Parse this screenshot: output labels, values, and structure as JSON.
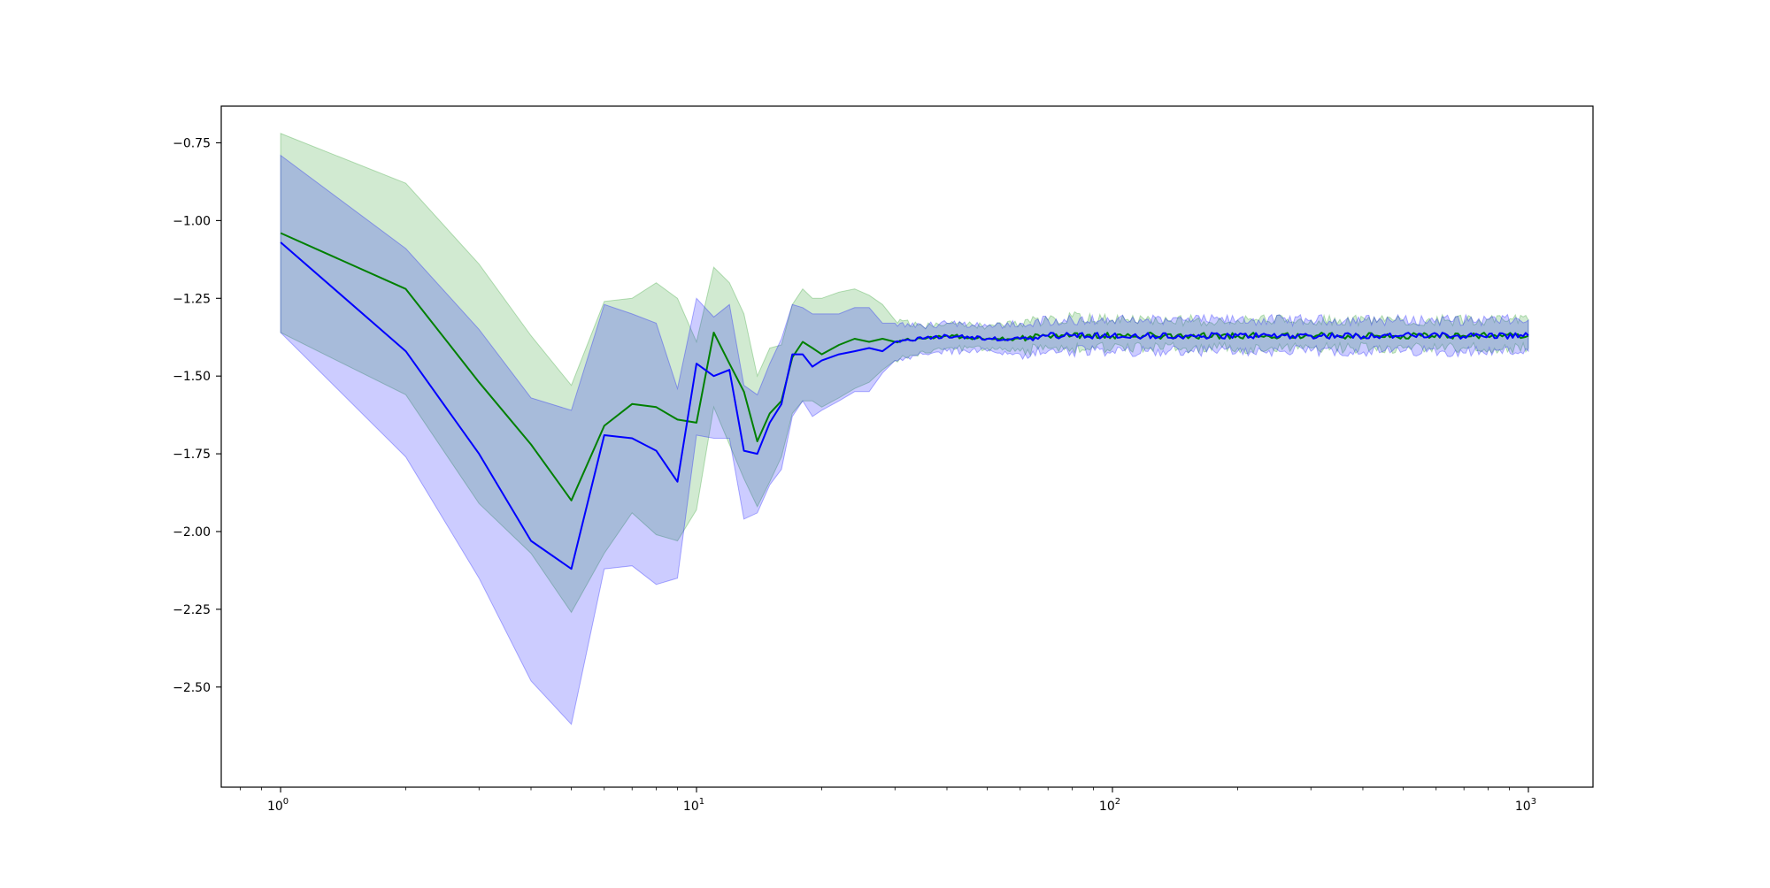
{
  "chart_data": {
    "type": "line",
    "title": "",
    "xlabel": "",
    "ylabel": "",
    "xscale": "log",
    "xlim": [
      0.72,
      1430
    ],
    "ylim": [
      -2.822,
      -0.632
    ],
    "grid": false,
    "legend": "none",
    "x_ticks": [
      {
        "value": 1,
        "base": "10",
        "exp": "0"
      },
      {
        "value": 10,
        "base": "10",
        "exp": "1"
      },
      {
        "value": 100,
        "base": "10",
        "exp": "2"
      },
      {
        "value": 1000,
        "base": "10",
        "exp": "3"
      }
    ],
    "y_ticks": [
      {
        "value": -0.75,
        "label": "−0.75"
      },
      {
        "value": -1.0,
        "label": "−1.00"
      },
      {
        "value": -1.25,
        "label": "−1.25"
      },
      {
        "value": -1.5,
        "label": "−1.50"
      },
      {
        "value": -1.75,
        "label": "−1.75"
      },
      {
        "value": -2.0,
        "label": "−2.00"
      },
      {
        "value": -2.25,
        "label": "−2.25"
      },
      {
        "value": -2.5,
        "label": "−2.50"
      }
    ],
    "series": [
      {
        "color": "#008000",
        "band_color": "#2ca02c",
        "band_opacity": 0.22,
        "x": [
          1,
          2,
          3,
          4,
          5,
          6,
          7,
          8,
          9,
          10,
          11,
          12,
          13,
          14,
          15,
          16,
          17,
          18,
          19,
          20,
          22,
          24,
          26,
          28,
          30,
          35,
          40,
          50,
          60,
          70,
          80,
          100,
          120,
          150,
          200,
          300,
          500,
          1000
        ],
        "y": [
          -1.04,
          -1.22,
          -1.52,
          -1.72,
          -1.9,
          -1.66,
          -1.59,
          -1.6,
          -1.64,
          -1.65,
          -1.36,
          -1.46,
          -1.55,
          -1.71,
          -1.62,
          -1.58,
          -1.44,
          -1.39,
          -1.41,
          -1.43,
          -1.4,
          -1.38,
          -1.39,
          -1.38,
          -1.39,
          -1.38,
          -1.37,
          -1.38,
          -1.38,
          -1.37,
          -1.37,
          -1.37,
          -1.37,
          -1.37,
          -1.37,
          -1.37,
          -1.37,
          -1.37
        ],
        "lower": [
          -1.36,
          -1.56,
          -1.91,
          -2.07,
          -2.26,
          -2.07,
          -1.94,
          -2.01,
          -2.03,
          -1.93,
          -1.6,
          -1.72,
          -1.83,
          -1.92,
          -1.84,
          -1.76,
          -1.62,
          -1.58,
          -1.58,
          -1.6,
          -1.57,
          -1.54,
          -1.52,
          -1.48,
          -1.45,
          -1.42,
          -1.41,
          -1.41,
          -1.42,
          -1.41,
          -1.41,
          -1.41,
          -1.41,
          -1.41,
          -1.41,
          -1.41,
          -1.41,
          -1.41
        ],
        "upper": [
          -0.72,
          -0.88,
          -1.14,
          -1.37,
          -1.53,
          -1.26,
          -1.25,
          -1.2,
          -1.25,
          -1.39,
          -1.15,
          -1.2,
          -1.3,
          -1.5,
          -1.41,
          -1.4,
          -1.27,
          -1.22,
          -1.25,
          -1.25,
          -1.23,
          -1.22,
          -1.24,
          -1.27,
          -1.32,
          -1.34,
          -1.33,
          -1.34,
          -1.33,
          -1.32,
          -1.31,
          -1.32,
          -1.32,
          -1.32,
          -1.32,
          -1.32,
          -1.32,
          -1.32
        ]
      },
      {
        "color": "#0000ff",
        "band_color": "#0000ff",
        "band_opacity": 0.2,
        "x": [
          1,
          2,
          3,
          4,
          5,
          6,
          7,
          8,
          9,
          10,
          11,
          12,
          13,
          14,
          15,
          16,
          17,
          18,
          19,
          20,
          22,
          24,
          26,
          28,
          30,
          35,
          40,
          50,
          60,
          70,
          80,
          100,
          120,
          150,
          200,
          300,
          500,
          1000
        ],
        "y": [
          -1.07,
          -1.42,
          -1.75,
          -2.03,
          -2.12,
          -1.69,
          -1.7,
          -1.74,
          -1.84,
          -1.46,
          -1.5,
          -1.48,
          -1.74,
          -1.75,
          -1.65,
          -1.59,
          -1.43,
          -1.43,
          -1.47,
          -1.45,
          -1.43,
          -1.42,
          -1.41,
          -1.42,
          -1.39,
          -1.38,
          -1.37,
          -1.38,
          -1.38,
          -1.37,
          -1.37,
          -1.37,
          -1.37,
          -1.37,
          -1.37,
          -1.37,
          -1.37,
          -1.37
        ],
        "lower": [
          -1.36,
          -1.76,
          -2.15,
          -2.48,
          -2.62,
          -2.12,
          -2.11,
          -2.17,
          -2.15,
          -1.69,
          -1.7,
          -1.7,
          -1.96,
          -1.94,
          -1.85,
          -1.8,
          -1.63,
          -1.58,
          -1.63,
          -1.61,
          -1.58,
          -1.55,
          -1.55,
          -1.49,
          -1.45,
          -1.43,
          -1.42,
          -1.42,
          -1.43,
          -1.42,
          -1.42,
          -1.42,
          -1.42,
          -1.42,
          -1.42,
          -1.42,
          -1.42,
          -1.42
        ],
        "upper": [
          -0.79,
          -1.09,
          -1.35,
          -1.57,
          -1.61,
          -1.27,
          -1.3,
          -1.33,
          -1.54,
          -1.25,
          -1.31,
          -1.27,
          -1.53,
          -1.56,
          -1.46,
          -1.38,
          -1.27,
          -1.28,
          -1.3,
          -1.3,
          -1.3,
          -1.28,
          -1.28,
          -1.33,
          -1.33,
          -1.34,
          -1.33,
          -1.34,
          -1.33,
          -1.32,
          -1.32,
          -1.32,
          -1.32,
          -1.32,
          -1.32,
          -1.32,
          -1.32,
          -1.32
        ]
      }
    ]
  }
}
